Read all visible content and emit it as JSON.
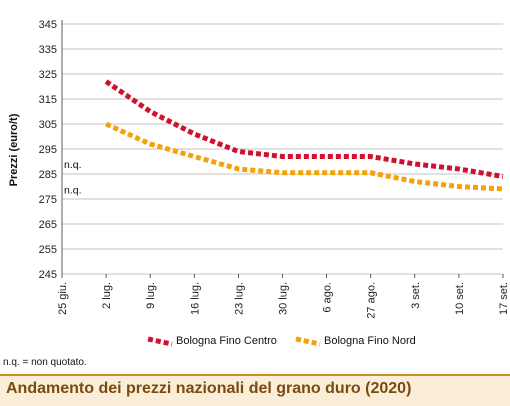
{
  "chart_data": {
    "type": "line",
    "title": "Andamento dei prezzi nazionali del grano duro (2020)",
    "ylabel": "Prezzi (euro/t)",
    "xlabel": "",
    "ylim": [
      245,
      345
    ],
    "yticks": [
      245,
      255,
      265,
      275,
      285,
      295,
      305,
      315,
      325,
      335,
      345
    ],
    "categories": [
      "25 giu.",
      "2 lug.",
      "9 lug.",
      "16 lug.",
      "23 lug.",
      "30 lug.",
      "6 ago.",
      "27 ago.",
      "3 set.",
      "10 set.",
      "17 set."
    ],
    "series": [
      {
        "name": "Bologna Fino Centro",
        "color": "#d0102e",
        "values": [
          null,
          322,
          310,
          301,
          294,
          292,
          292,
          292,
          289,
          287,
          284
        ]
      },
      {
        "name": "Bologna Fino Nord",
        "color": "#f4a20a",
        "values": [
          null,
          305,
          297,
          292,
          287,
          285.5,
          285.5,
          285.5,
          282,
          280,
          279
        ]
      }
    ],
    "annotations": [
      "n.q.",
      "n.q."
    ],
    "grid": "horizontal",
    "legend_position": "bottom"
  },
  "footnote": "n.q. = non quotato."
}
